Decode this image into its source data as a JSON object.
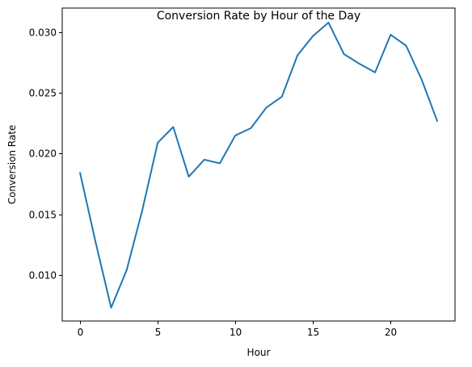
{
  "chart_data": {
    "type": "line",
    "title": "Conversion Rate by Hour of the Day",
    "xlabel": "Hour",
    "ylabel": "Conversion Rate",
    "xlim": [
      -1.15,
      24.15
    ],
    "ylim": [
      0.0062,
      0.032
    ],
    "xticks": [
      0,
      5,
      10,
      15,
      20
    ],
    "xtick_labels": [
      "0",
      "5",
      "10",
      "15",
      "20"
    ],
    "yticks": [
      0.01,
      0.015,
      0.02,
      0.025,
      0.03
    ],
    "ytick_labels": [
      "0.010",
      "0.015",
      "0.020",
      "0.025",
      "0.030"
    ],
    "grid": false,
    "legend": "none",
    "series": [
      {
        "color": "#1f77b4",
        "x": [
          0,
          1,
          2,
          3,
          4,
          5,
          6,
          7,
          8,
          9,
          10,
          11,
          12,
          13,
          14,
          15,
          16,
          17,
          18,
          19,
          20,
          21,
          22,
          23
        ],
        "y": [
          0.0184,
          0.0127,
          0.0073,
          0.0104,
          0.0153,
          0.0209,
          0.0222,
          0.0181,
          0.0195,
          0.0192,
          0.0215,
          0.0221,
          0.0238,
          0.0247,
          0.0281,
          0.0297,
          0.0308,
          0.0282,
          0.0274,
          0.0267,
          0.0298,
          0.0289,
          0.0261,
          0.0227
        ]
      }
    ]
  }
}
